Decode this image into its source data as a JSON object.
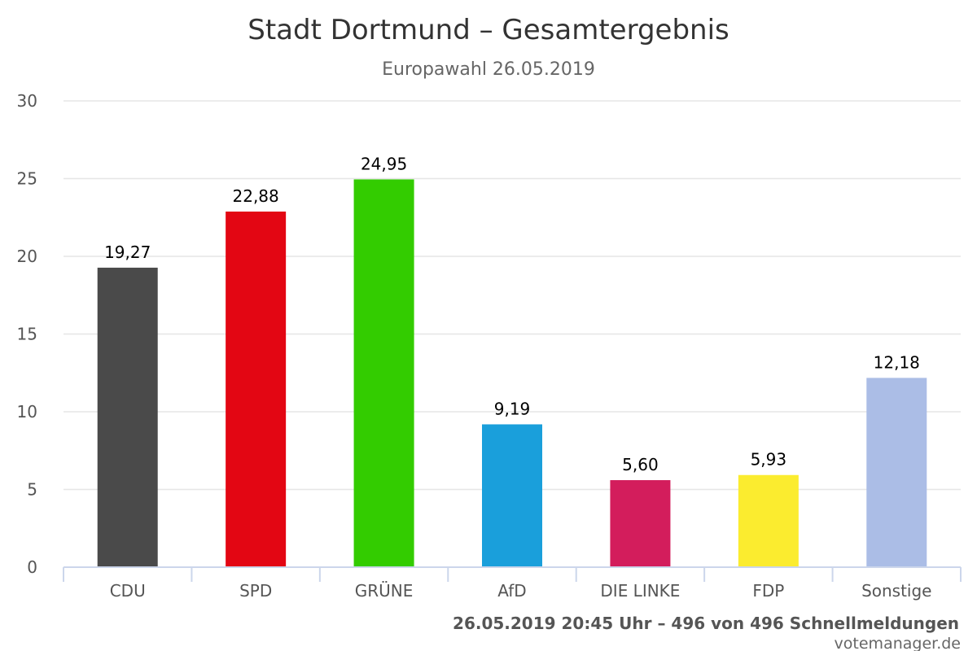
{
  "chart_data": {
    "type": "bar",
    "title": "Stadt Dortmund – Gesamtergebnis",
    "subtitle": "Europawahl 26.05.2019",
    "categories": [
      "CDU",
      "SPD",
      "GRÜNE",
      "AfD",
      "DIE LINKE",
      "FDP",
      "Sonstige"
    ],
    "values": [
      19.27,
      22.88,
      24.95,
      9.19,
      5.6,
      5.93,
      12.18
    ],
    "value_labels": [
      "19,27",
      "22,88",
      "24,95",
      "9,19",
      "5,60",
      "5,93",
      "12,18"
    ],
    "colors": [
      "#4a4a4a",
      "#e30613",
      "#33cc00",
      "#1a9fdb",
      "#d31d5c",
      "#fbec2f",
      "#abbde6"
    ],
    "ylim": [
      0,
      30
    ],
    "yticks": [
      0,
      5,
      10,
      15,
      20,
      25,
      30
    ],
    "xlabel": "",
    "ylabel": "",
    "grid": true,
    "legend": "none"
  },
  "footer": {
    "status": "26.05.2019 20:45 Uhr – 496 von 496 Schnellmeldungen",
    "credit": "votemanager.de"
  }
}
